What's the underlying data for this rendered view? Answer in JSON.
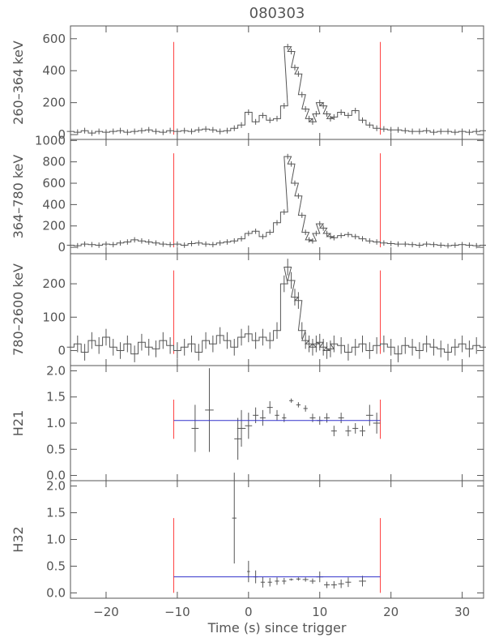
{
  "figure": {
    "title": "080303",
    "xlabel": "Time (s) since trigger",
    "colors": {
      "data": "#555555",
      "marker": "#ff4444",
      "fit": "#3333cc",
      "axis": "#555555"
    }
  },
  "chart_data": [
    {
      "type": "line",
      "panel": "260-364",
      "ylabel": "260–364 keV",
      "xlim": [
        -25,
        33
      ],
      "ylim": [
        -30,
        680
      ],
      "yticks": [
        0,
        200,
        400,
        600
      ],
      "yticklabels": [
        "0",
        "200",
        "400",
        "600"
      ],
      "marker_lines": [
        -10.5,
        18.5
      ],
      "marker_range": [
        0,
        580
      ],
      "x": [
        -25,
        -24,
        -23,
        -22,
        -21,
        -20,
        -19,
        -18,
        -17,
        -16,
        -15,
        -14,
        -13,
        -12,
        -11,
        -10,
        -9,
        -8,
        -7,
        -6,
        -5,
        -4,
        -3,
        -2,
        -1,
        0,
        1,
        2,
        3,
        4,
        5,
        5.5,
        6,
        6.5,
        7,
        7.5,
        8,
        8.5,
        9,
        9.5,
        10,
        10.5,
        11,
        11.5,
        12,
        13,
        14,
        15,
        16,
        17,
        18,
        19,
        20,
        21,
        22,
        23,
        24,
        25,
        26,
        27,
        28,
        29,
        30,
        31,
        32,
        33
      ],
      "y": [
        20,
        15,
        25,
        10,
        20,
        15,
        20,
        25,
        15,
        20,
        25,
        30,
        20,
        15,
        25,
        20,
        25,
        20,
        30,
        35,
        30,
        20,
        25,
        40,
        60,
        140,
        80,
        120,
        90,
        100,
        180,
        550,
        520,
        420,
        380,
        250,
        160,
        100,
        80,
        130,
        200,
        180,
        130,
        100,
        110,
        140,
        120,
        150,
        90,
        60,
        40,
        35,
        30,
        30,
        25,
        20,
        20,
        25,
        15,
        20,
        20,
        15,
        20,
        15,
        20,
        25
      ],
      "err": 18
    },
    {
      "type": "line",
      "panel": "364-780",
      "ylabel": "364–780 keV",
      "xlim": [
        -25,
        33
      ],
      "ylim": [
        -60,
        1010
      ],
      "yticks": [
        0,
        200,
        400,
        600,
        800,
        1000
      ],
      "yticklabels": [
        "0",
        "200",
        "400",
        "600",
        "800",
        "1000"
      ],
      "marker_lines": [
        -10.5,
        18.5
      ],
      "marker_range": [
        0,
        880
      ],
      "x": [
        -25,
        -24,
        -23,
        -22,
        -21,
        -20,
        -19,
        -18,
        -17,
        -16,
        -15,
        -14,
        -13,
        -12,
        -11,
        -10,
        -9,
        -8,
        -7,
        -6,
        -5,
        -4,
        -3,
        -2,
        -1,
        0,
        1,
        2,
        3,
        4,
        5,
        5.5,
        6,
        6.5,
        7,
        7.5,
        8,
        8.5,
        9,
        9.5,
        10,
        10.5,
        11,
        11.5,
        12,
        13,
        14,
        15,
        16,
        17,
        18,
        19,
        20,
        21,
        22,
        23,
        24,
        25,
        26,
        27,
        28,
        29,
        30,
        31,
        32,
        33
      ],
      "y": [
        20,
        15,
        30,
        25,
        20,
        30,
        25,
        40,
        50,
        70,
        60,
        50,
        40,
        30,
        25,
        30,
        20,
        35,
        40,
        30,
        25,
        40,
        50,
        60,
        80,
        130,
        150,
        100,
        140,
        230,
        330,
        850,
        780,
        600,
        480,
        300,
        140,
        70,
        60,
        130,
        220,
        180,
        130,
        100,
        90,
        110,
        120,
        100,
        80,
        60,
        50,
        40,
        35,
        30,
        30,
        25,
        20,
        30,
        25,
        20,
        15,
        20,
        25,
        20,
        15,
        20
      ],
      "err": 25
    },
    {
      "type": "line",
      "panel": "780-2600",
      "ylabel": "780–2600 keV",
      "xlim": [
        -25,
        33
      ],
      "ylim": [
        -45,
        290
      ],
      "yticks": [
        0,
        100,
        200
      ],
      "yticklabels": [
        "0",
        "100",
        "200"
      ],
      "marker_lines": [
        -10.5,
        18.5
      ],
      "marker_range": [
        -10,
        240
      ],
      "x": [
        -25,
        -24,
        -23,
        -22,
        -21,
        -20,
        -19,
        -18,
        -17,
        -16,
        -15,
        -14,
        -13,
        -12,
        -11,
        -10,
        -9,
        -8,
        -7,
        -6,
        -5,
        -4,
        -3,
        -2,
        -1,
        0,
        1,
        2,
        3,
        4,
        5,
        5.5,
        6,
        6.5,
        7,
        7.5,
        8,
        8.5,
        9,
        9.5,
        10,
        10.5,
        11,
        11.5,
        12,
        13,
        14,
        15,
        16,
        17,
        18,
        19,
        20,
        21,
        22,
        23,
        24,
        25,
        26,
        27,
        28,
        29,
        30,
        31,
        32,
        33
      ],
      "y": [
        10,
        20,
        -5,
        30,
        15,
        40,
        10,
        0,
        20,
        -10,
        25,
        10,
        5,
        30,
        15,
        0,
        10,
        20,
        -5,
        30,
        20,
        45,
        30,
        10,
        40,
        50,
        30,
        40,
        30,
        60,
        200,
        250,
        210,
        160,
        150,
        60,
        30,
        20,
        10,
        20,
        25,
        10,
        0,
        5,
        20,
        15,
        -5,
        10,
        20,
        0,
        15,
        20,
        10,
        -10,
        15,
        10,
        0,
        20,
        10,
        5,
        -5,
        10,
        20,
        5,
        15,
        10
      ],
      "err": 25
    },
    {
      "type": "scatter",
      "panel": "H21",
      "ylabel": "H21",
      "xlim": [
        -25,
        33
      ],
      "ylim": [
        -0.1,
        2.1
      ],
      "yticks": [
        0.0,
        0.5,
        1.0,
        1.5,
        2.0
      ],
      "yticklabels": [
        "0.0",
        "0.5",
        "1.0",
        "1.5",
        "2.0"
      ],
      "marker_lines": [
        -10.5,
        18.5
      ],
      "marker_range": [
        0.7,
        1.45
      ],
      "fit": {
        "x": [
          -10.5,
          18.5
        ],
        "y": 1.05
      },
      "points": [
        {
          "x": -7.5,
          "y": 0.9,
          "xerr": 0.5,
          "yerr": 0.45
        },
        {
          "x": -5.5,
          "y": 1.25,
          "xerr": 0.6,
          "yerr": 0.8
        },
        {
          "x": -1.5,
          "y": 0.7,
          "xerr": 0.5,
          "yerr": 0.4
        },
        {
          "x": -1.0,
          "y": 0.9,
          "xerr": 0.6,
          "yerr": 0.35
        },
        {
          "x": 0.0,
          "y": 0.95,
          "xerr": 0.5,
          "yerr": 0.25
        },
        {
          "x": 1.0,
          "y": 1.15,
          "xerr": 0.4,
          "yerr": 0.15
        },
        {
          "x": 2.0,
          "y": 1.1,
          "xerr": 0.4,
          "yerr": 0.15
        },
        {
          "x": 3.0,
          "y": 1.3,
          "xerr": 0.4,
          "yerr": 0.12
        },
        {
          "x": 4.0,
          "y": 1.15,
          "xerr": 0.3,
          "yerr": 0.1
        },
        {
          "x": 5.0,
          "y": 1.1,
          "xerr": 0.3,
          "yerr": 0.08
        },
        {
          "x": 6.0,
          "y": 1.43,
          "xerr": 0.3,
          "yerr": 0.04
        },
        {
          "x": 7.0,
          "y": 1.35,
          "xerr": 0.3,
          "yerr": 0.05
        },
        {
          "x": 8.0,
          "y": 1.28,
          "xerr": 0.3,
          "yerr": 0.06
        },
        {
          "x": 9.0,
          "y": 1.1,
          "xerr": 0.4,
          "yerr": 0.08
        },
        {
          "x": 10.0,
          "y": 1.05,
          "xerr": 0.4,
          "yerr": 0.08
        },
        {
          "x": 11.0,
          "y": 1.1,
          "xerr": 0.4,
          "yerr": 0.09
        },
        {
          "x": 12.0,
          "y": 0.85,
          "xerr": 0.4,
          "yerr": 0.1
        },
        {
          "x": 13.0,
          "y": 1.1,
          "xerr": 0.4,
          "yerr": 0.1
        },
        {
          "x": 14.0,
          "y": 0.85,
          "xerr": 0.4,
          "yerr": 0.1
        },
        {
          "x": 15.0,
          "y": 0.9,
          "xerr": 0.4,
          "yerr": 0.1
        },
        {
          "x": 16.0,
          "y": 0.85,
          "xerr": 0.4,
          "yerr": 0.1
        },
        {
          "x": 17.0,
          "y": 1.15,
          "xerr": 0.5,
          "yerr": 0.2
        },
        {
          "x": 18.0,
          "y": 1.0,
          "xerr": 0.5,
          "yerr": 0.2
        }
      ]
    },
    {
      "type": "scatter",
      "panel": "H32",
      "ylabel": "H32",
      "xlim": [
        -25,
        33
      ],
      "ylim": [
        -0.1,
        2.1
      ],
      "yticks": [
        0.0,
        0.5,
        1.0,
        1.5,
        2.0
      ],
      "yticklabels": [
        "0.0",
        "0.5",
        "1.0",
        "1.5",
        "2.0"
      ],
      "xticks": [
        -20,
        -10,
        0,
        10,
        20,
        30
      ],
      "xticklabels": [
        "−20",
        "−10",
        "0",
        "10",
        "20",
        "30"
      ],
      "marker_lines": [
        -10.5,
        18.5
      ],
      "marker_range": [
        0.0,
        1.4
      ],
      "fit": {
        "x": [
          -10.5,
          18.5
        ],
        "y": 0.3
      },
      "points": [
        {
          "x": -2.0,
          "y": 1.4,
          "xerr": 0.3,
          "yerr": 0.85
        },
        {
          "x": 0.0,
          "y": 0.4,
          "xerr": 0.2,
          "yerr": 0.2
        },
        {
          "x": 1.0,
          "y": 0.3,
          "xerr": 0.3,
          "yerr": 0.12
        },
        {
          "x": 2.0,
          "y": 0.2,
          "xerr": 0.3,
          "yerr": 0.1
        },
        {
          "x": 3.0,
          "y": 0.2,
          "xerr": 0.3,
          "yerr": 0.08
        },
        {
          "x": 4.0,
          "y": 0.22,
          "xerr": 0.3,
          "yerr": 0.07
        },
        {
          "x": 5.0,
          "y": 0.22,
          "xerr": 0.3,
          "yerr": 0.06
        },
        {
          "x": 6.0,
          "y": 0.25,
          "xerr": 0.3,
          "yerr": 0.02
        },
        {
          "x": 7.0,
          "y": 0.26,
          "xerr": 0.3,
          "yerr": 0.03
        },
        {
          "x": 8.0,
          "y": 0.25,
          "xerr": 0.4,
          "yerr": 0.04
        },
        {
          "x": 9.0,
          "y": 0.22,
          "xerr": 0.4,
          "yerr": 0.05
        },
        {
          "x": 10.0,
          "y": 0.3,
          "xerr": 0.5,
          "yerr": 0.1
        },
        {
          "x": 11.0,
          "y": 0.15,
          "xerr": 0.4,
          "yerr": 0.06
        },
        {
          "x": 12.0,
          "y": 0.15,
          "xerr": 0.4,
          "yerr": 0.07
        },
        {
          "x": 13.0,
          "y": 0.17,
          "xerr": 0.4,
          "yerr": 0.08
        },
        {
          "x": 14.0,
          "y": 0.2,
          "xerr": 0.4,
          "yerr": 0.09
        },
        {
          "x": 16.0,
          "y": 0.22,
          "xerr": 0.5,
          "yerr": 0.1
        }
      ]
    }
  ]
}
